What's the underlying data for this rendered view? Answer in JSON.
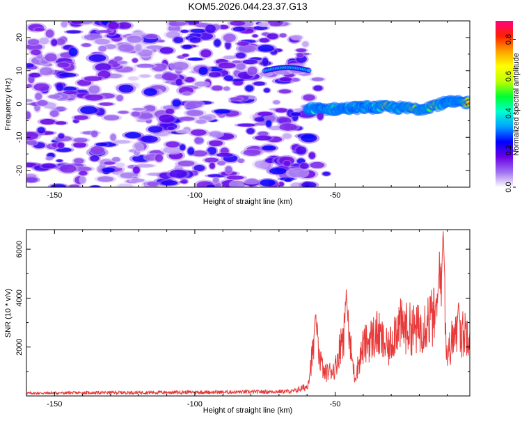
{
  "title": "KOM5.2026.044.23.37.G13",
  "colors": {
    "frame": "#000000",
    "snr_line": "#e83a3a",
    "background": "#ffffff"
  },
  "chart_data": [
    {
      "type": "heatmap",
      "name": "spectrogram",
      "xlabel": "Height of straight line (km)",
      "ylabel": "Frequency (Hz)",
      "xlim": [
        -160,
        -2
      ],
      "ylim": [
        -25,
        25
      ],
      "x_ticks": [
        -150,
        -100,
        -50
      ],
      "y_ticks": [
        20,
        10,
        0,
        -10,
        -20
      ],
      "colorbar": {
        "label": "Normalized spectral amplitude",
        "range": [
          0,
          0.9
        ],
        "ticks": [
          0.0,
          0.2,
          0.4,
          0.6,
          0.8
        ],
        "colormap": [
          "#ffffff",
          "#a070f0",
          "#6a00e6",
          "#0000ff",
          "#00a0ff",
          "#00ffd0",
          "#00ff30",
          "#c0ff00",
          "#ffff00",
          "#ffa000",
          "#ff2000",
          "#ff0080"
        ]
      },
      "features": {
        "noise_region_x": [
          -160,
          -58
        ],
        "noise_freq_range": [
          -25,
          25
        ],
        "noise_amplitude": [
          0.05,
          0.25
        ],
        "low_amplitude_band_x": [
          -128,
          -115
        ],
        "upper_track": {
          "x": [
            -75,
            -59
          ],
          "freq": [
            10,
            11
          ],
          "amplitude": 0.35
        },
        "main_track": [
          {
            "x": -60,
            "freq": -1.5
          },
          {
            "x": -50,
            "freq": -1.5
          },
          {
            "x": -40,
            "freq": -1.0
          },
          {
            "x": -30,
            "freq": -1.0
          },
          {
            "x": -20,
            "freq": -1.5
          },
          {
            "x": -10,
            "freq": 0.5
          },
          {
            "x": -2,
            "freq": 0.5
          }
        ],
        "main_track_peak_amplitude": 0.9,
        "peak_locations_x": [
          -32,
          -22,
          -15,
          -3
        ]
      }
    },
    {
      "type": "line",
      "name": "snr",
      "xlabel": "Height of straight line (km)",
      "ylabel": "SNR (10 * v/v)",
      "xlim": [
        -160,
        -2
      ],
      "ylim": [
        0,
        6800
      ],
      "x_ticks": [
        -150,
        -100,
        -50
      ],
      "y_ticks": [
        2000,
        4000,
        6000
      ],
      "series": [
        {
          "name": "SNR",
          "color": "#e83a3a",
          "envelope": [
            {
              "x": -160,
              "y": 120
            },
            {
              "x": -120,
              "y": 150
            },
            {
              "x": -80,
              "y": 170
            },
            {
              "x": -65,
              "y": 200
            },
            {
              "x": -60,
              "y": 400
            },
            {
              "x": -57,
              "y": 3300
            },
            {
              "x": -54,
              "y": 1200
            },
            {
              "x": -50,
              "y": 1500
            },
            {
              "x": -46,
              "y": 4200
            },
            {
              "x": -43,
              "y": 1000
            },
            {
              "x": -40,
              "y": 2700
            },
            {
              "x": -35,
              "y": 3400
            },
            {
              "x": -31,
              "y": 2500
            },
            {
              "x": -28,
              "y": 3900
            },
            {
              "x": -25,
              "y": 3700
            },
            {
              "x": -20,
              "y": 3600
            },
            {
              "x": -17,
              "y": 4200
            },
            {
              "x": -14,
              "y": 4300
            },
            {
              "x": -12,
              "y": 6800
            },
            {
              "x": -10,
              "y": 2200
            },
            {
              "x": -8,
              "y": 3200
            },
            {
              "x": -5,
              "y": 3300
            },
            {
              "x": -2,
              "y": 3700
            }
          ],
          "spikes": [
            {
              "x": -57,
              "y": 3300
            },
            {
              "x": -46,
              "y": 4200
            },
            {
              "x": -13,
              "y": 5100
            },
            {
              "x": -11.5,
              "y": 6800
            },
            {
              "x": -6,
              "y": 3900
            }
          ]
        }
      ]
    }
  ]
}
